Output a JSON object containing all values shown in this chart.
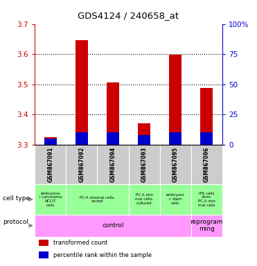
{
  "title": "GDS4124 / 240658_at",
  "samples": [
    "GSM867091",
    "GSM867092",
    "GSM867094",
    "GSM867093",
    "GSM867095",
    "GSM867096"
  ],
  "transformed_counts": [
    3.325,
    3.645,
    3.505,
    3.37,
    3.598,
    3.487
  ],
  "percentile_ranks_pct": [
    5,
    10,
    10,
    8,
    10,
    10
  ],
  "ylim_left": [
    3.3,
    3.7
  ],
  "ylim_right": [
    0,
    100
  ],
  "yticks_left": [
    3.3,
    3.4,
    3.5,
    3.6,
    3.7
  ],
  "yticks_right": [
    0,
    25,
    50,
    75,
    100
  ],
  "bar_base": 3.3,
  "blue_segment_pct": [
    5,
    10,
    10,
    8,
    10,
    10
  ],
  "cell_groups": [
    {
      "start": 0,
      "end": 0,
      "label": "embryona\nl carcinoma\nNCCIT\ncells"
    },
    {
      "start": 1,
      "end": 2,
      "label": "PC-A stromal cells,\nsorted"
    },
    {
      "start": 3,
      "end": 3,
      "label": "PC-A stro\nmal cells,\ncultured"
    },
    {
      "start": 4,
      "end": 4,
      "label": "embryoni\nc stem\ncells"
    },
    {
      "start": 5,
      "end": 5,
      "label": "IPS cells\nfrom\nPC-A stro\nmal cells"
    }
  ],
  "proto_groups": [
    {
      "start": 0,
      "end": 4,
      "label": "control"
    },
    {
      "start": 5,
      "end": 5,
      "label": "reprogram\nming"
    }
  ],
  "bar_color_red": "#cc0000",
  "bar_color_blue": "#0000cc",
  "bg_color": "#cccccc",
  "cell_color": "#99ff99",
  "proto_color": "#ff99ff",
  "plot_bg": "#ffffff",
  "left_axis_color": "#cc0000",
  "right_axis_color": "#0000cc",
  "bar_width": 0.4
}
